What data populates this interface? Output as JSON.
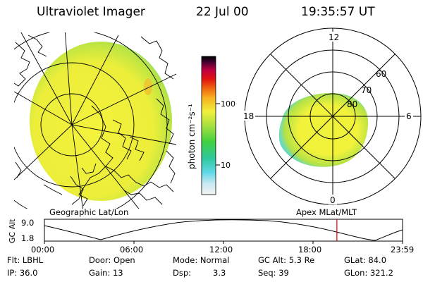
{
  "header": {
    "instrument": "Ultraviolet Imager",
    "date": "22 Jul 00",
    "time": "19:35:57 UT"
  },
  "colorbar": {
    "unit_label": "photon cm⁻²s⁻¹",
    "ticks": [
      "100",
      "10"
    ]
  },
  "polar_plot": {
    "mlt_labels": [
      "12",
      "18",
      "6",
      "0"
    ],
    "lat_labels": [
      "60",
      "70",
      "80"
    ]
  },
  "panel_labels": {
    "left": "Geographic Lat/Lon",
    "right": "Apex MLat/MLT"
  },
  "altitude_strip": {
    "ylabel": "GC Alt",
    "ymax": "9.0",
    "ymin": "1.8",
    "time_ticks": [
      "00:00",
      "06:00",
      "12:00",
      "18:00",
      "23:59"
    ],
    "current_time_hours": 19.6
  },
  "info": {
    "flt": "Flt: LBHL",
    "ip": "IP: 36.0",
    "door": "Door: Open",
    "gain": "Gain: 13",
    "mode": "Mode: Normal",
    "dsp_label": "Dsp:",
    "dsp_value": "3.3",
    "gcalt": "GC Alt: 5.3 Re",
    "seq": "Seq: 39",
    "glat": "GLat:  84.0",
    "glon": "GLon: 321.2"
  },
  "colors": {
    "aurora_yellow": "#f2f23a",
    "aurora_green": "#a8e040",
    "aurora_cyan": "#5cd8c8",
    "marker_red": "#e00000"
  }
}
